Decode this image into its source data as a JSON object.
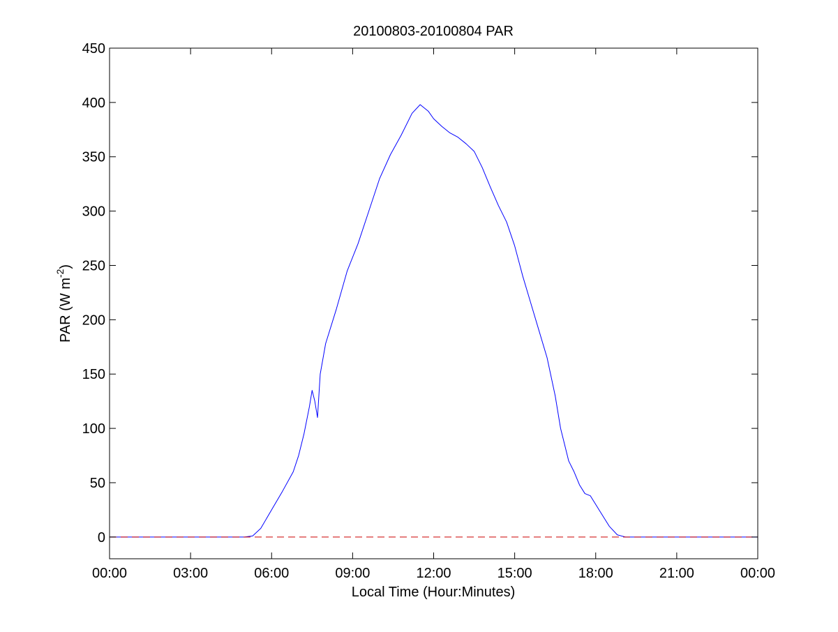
{
  "chart_data": {
    "type": "line",
    "title": "20100803-20100804 PAR",
    "xlabel": "Local Time (Hour:Minutes)",
    "ylabel": "PAR (W m",
    "ylabel_superscript": "-2",
    "ylabel_suffix": ")",
    "xlim": [
      0,
      24
    ],
    "ylim": [
      -20,
      450
    ],
    "x_ticks": [
      0,
      3,
      6,
      9,
      12,
      15,
      18,
      21,
      24
    ],
    "x_tick_labels": [
      "00:00",
      "03:00",
      "06:00",
      "09:00",
      "12:00",
      "15:00",
      "18:00",
      "21:00",
      "00:00"
    ],
    "y_ticks": [
      0,
      50,
      100,
      150,
      200,
      250,
      300,
      350,
      400,
      450
    ],
    "y_tick_labels": [
      "0",
      "50",
      "100",
      "150",
      "200",
      "250",
      "300",
      "350",
      "400",
      "450"
    ],
    "grid": false,
    "legend": "none",
    "series": [
      {
        "color": "#0000ff",
        "style": "solid",
        "x": [
          0,
          5.0,
          5.3,
          5.6,
          6.0,
          6.4,
          6.8,
          7.0,
          7.2,
          7.4,
          7.5,
          7.6,
          7.7,
          7.8,
          8.0,
          8.4,
          8.8,
          9.2,
          9.6,
          10.0,
          10.4,
          10.8,
          11.2,
          11.5,
          11.8,
          12.0,
          12.3,
          12.6,
          12.9,
          13.2,
          13.5,
          13.8,
          14.1,
          14.4,
          14.7,
          15.0,
          15.3,
          15.6,
          15.9,
          16.2,
          16.5,
          16.7,
          16.9,
          17.0,
          17.2,
          17.4,
          17.6,
          17.8,
          18.0,
          18.2,
          18.5,
          18.8,
          19.1,
          19.4,
          24
        ],
        "y": [
          0,
          0,
          1,
          8,
          25,
          42,
          60,
          75,
          95,
          120,
          135,
          125,
          110,
          150,
          178,
          210,
          245,
          270,
          300,
          330,
          352,
          370,
          390,
          398,
          392,
          385,
          378,
          372,
          368,
          362,
          355,
          340,
          322,
          305,
          290,
          268,
          240,
          215,
          190,
          165,
          130,
          100,
          80,
          70,
          60,
          48,
          40,
          38,
          30,
          22,
          10,
          2,
          0,
          0,
          0
        ]
      },
      {
        "color": "#cc0000",
        "style": "dashed",
        "x": [
          0,
          24
        ],
        "y": [
          0,
          0
        ]
      }
    ]
  }
}
